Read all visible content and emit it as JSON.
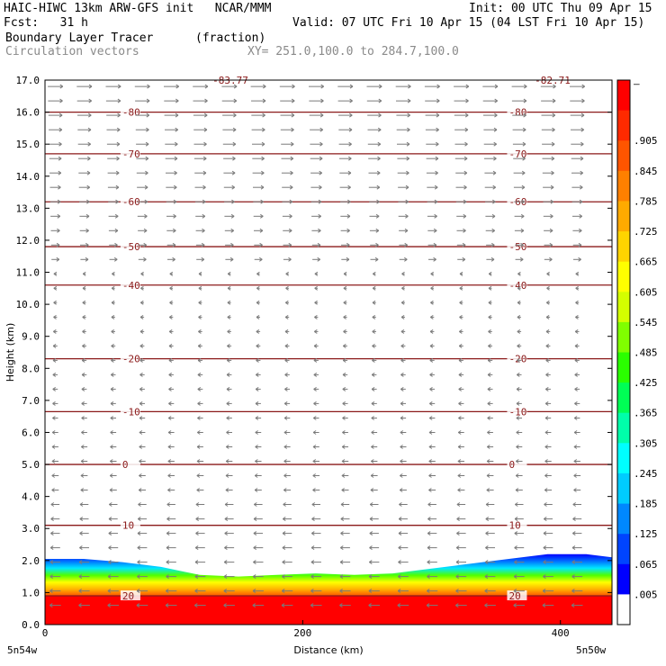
{
  "header": {
    "line1_left": "HAIC-HIWC 13km ARW-GFS init   NCAR/MMM",
    "line1_right": "Init: 00 UTC Thu 09 Apr 15",
    "line2_left": "Fcst:   31 h",
    "line2_right": "Valid: 07 UTC Fri 10 Apr 15 (04 LST Fri 10 Apr 15)",
    "line3_left": "Boundary Layer Tracer",
    "line3_units": "(fraction)",
    "line4_left": "Circulation vectors",
    "line4_xy": "XY= 251.0,100.0 to 284.7,100.0"
  },
  "chart_data": {
    "type": "heatmap",
    "xlabel": "Distance (km)",
    "ylabel": "Height (km)",
    "xlim": [
      0,
      440
    ],
    "ylim": [
      0,
      17
    ],
    "x_ticks": [
      "0",
      "200",
      "400"
    ],
    "x_tick_values": [
      0,
      200,
      400
    ],
    "x_end_labels": [
      "5n54w",
      "5n50w"
    ],
    "y_ticks": [
      "0.0",
      "1.0",
      "2.0",
      "3.0",
      "4.0",
      "5.0",
      "6.0",
      "7.0",
      "8.0",
      "9.0",
      "10.0",
      "11.0",
      "12.0",
      "13.0",
      "14.0",
      "15.0",
      "16.0",
      "17.0"
    ],
    "colorbar_labels": [
      "–",
      ".905",
      ".845",
      ".785",
      ".725",
      ".665",
      ".605",
      ".545",
      ".485",
      ".425",
      ".365",
      ".305",
      ".245",
      ".185",
      ".125",
      ".065",
      ".005"
    ],
    "colorbar_colors": [
      "#ff0000",
      "#ff2a00",
      "#ff5500",
      "#ff8000",
      "#ffaa00",
      "#ffd400",
      "#ffff00",
      "#d4ff00",
      "#80ff00",
      "#2aff00",
      "#00ff55",
      "#00ffaa",
      "#00ffff",
      "#00ccff",
      "#0088ff",
      "#0044ff",
      "#0000ff",
      "#ffffff"
    ],
    "temperature_contours": [
      {
        "label": "20",
        "height": 0.9
      },
      {
        "label": "10",
        "height": 3.1
      },
      {
        "label": "0",
        "height": 5.0
      },
      {
        "label": "-10",
        "height": 6.65
      },
      {
        "label": "-20",
        "height": 8.3
      },
      {
        "label": "-40",
        "height": 10.6
      },
      {
        "label": "-50",
        "height": 11.8
      },
      {
        "label": "-60",
        "height": 13.2
      },
      {
        "label": "-70",
        "height": 14.7
      },
      {
        "label": "-80",
        "height": 16.0
      }
    ],
    "top_contour_labels": [
      "-83.77",
      "-82.71"
    ],
    "tracer_top_km": [
      2.05,
      2.05,
      1.95,
      1.8,
      1.55,
      1.5,
      1.55,
      1.6,
      1.55,
      1.6,
      1.75,
      1.9,
      2.05,
      2.2,
      2.2,
      2.1
    ],
    "tracer_x_km": [
      0,
      30,
      60,
      90,
      120,
      150,
      180,
      210,
      240,
      270,
      300,
      330,
      360,
      390,
      420,
      440
    ],
    "vector_direction_upper": "east",
    "vector_direction_lower": "west"
  }
}
